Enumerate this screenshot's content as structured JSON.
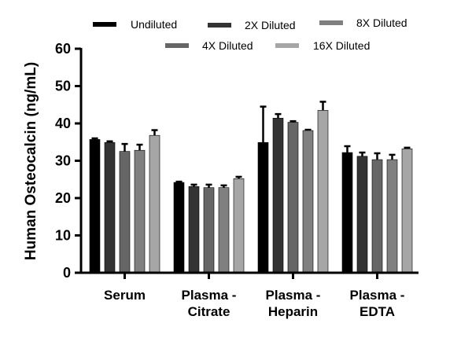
{
  "chart_data": {
    "type": "bar",
    "title": "",
    "xlabel": "",
    "ylabel": "Human Osteocalcin (ng/mL)",
    "ylim": [
      0,
      60
    ],
    "yticks": [
      0,
      10,
      20,
      30,
      40,
      50,
      60
    ],
    "grid": false,
    "legend_placement": "top",
    "categories": [
      [
        "Serum"
      ],
      [
        "Plasma -",
        "Citrate"
      ],
      [
        "Plasma -",
        "Heparin"
      ],
      [
        "Plasma -",
        "EDTA"
      ]
    ],
    "series": [
      {
        "name": "Undiluted",
        "color": "#000000",
        "values": [
          35.7,
          24.2,
          34.9,
          32.2
        ],
        "error_upper": [
          36.0,
          24.4,
          44.5,
          33.9
        ]
      },
      {
        "name": "2X Diluted",
        "color": "#333333",
        "values": [
          34.9,
          23.1,
          41.4,
          31.2
        ],
        "error_upper": [
          35.2,
          23.6,
          42.5,
          32.2
        ]
      },
      {
        "name": "4X Diluted",
        "color": "#666666",
        "values": [
          32.5,
          22.8,
          40.3,
          30.3
        ],
        "error_upper": [
          34.5,
          23.6,
          40.6,
          32.0
        ]
      },
      {
        "name": "8X Diluted",
        "color": "#808080",
        "values": [
          32.8,
          22.8,
          38.1,
          30.3
        ],
        "error_upper": [
          34.3,
          23.4,
          38.3,
          31.6
        ]
      },
      {
        "name": "16X Diluted",
        "color": "#a6a6a6",
        "values": [
          36.8,
          25.2,
          43.5,
          33.2
        ],
        "error_upper": [
          38.2,
          25.7,
          45.8,
          33.5
        ]
      }
    ]
  }
}
